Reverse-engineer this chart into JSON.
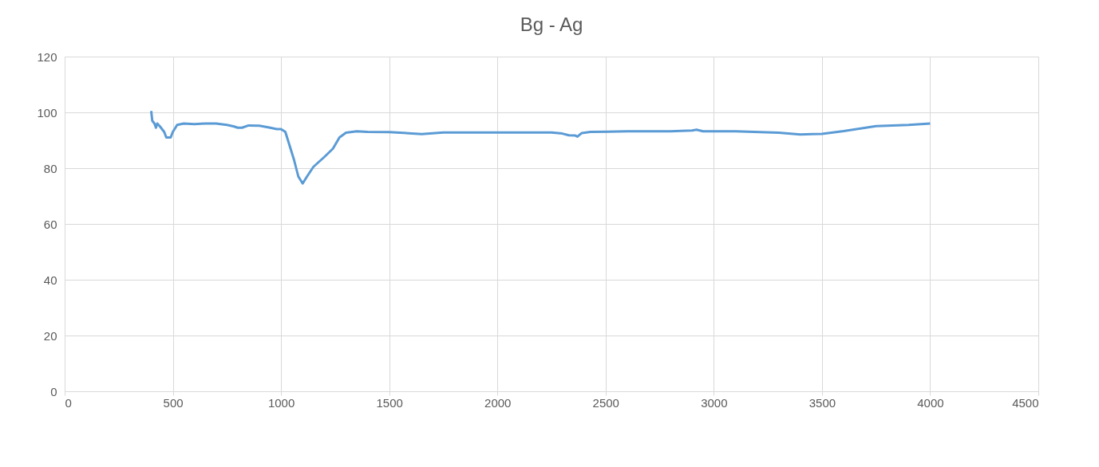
{
  "chart_data": {
    "type": "line",
    "title": "Bg - Ag",
    "x": [
      400,
      405,
      415,
      422,
      428,
      440,
      460,
      470,
      490,
      500,
      520,
      550,
      600,
      650,
      700,
      750,
      780,
      800,
      820,
      850,
      900,
      950,
      980,
      1000,
      1020,
      1040,
      1060,
      1080,
      1100,
      1120,
      1150,
      1200,
      1240,
      1270,
      1300,
      1350,
      1400,
      1500,
      1550,
      1650,
      1750,
      2000,
      2250,
      2300,
      2330,
      2360,
      2370,
      2390,
      2430,
      2600,
      2800,
      2900,
      2920,
      2950,
      3100,
      3300,
      3400,
      3500,
      3600,
      3750,
      3900,
      4000
    ],
    "series": [
      {
        "color": "#5b9bd5",
        "values": [
          100.5,
          97,
          96,
          94.5,
          96,
          95,
          93,
          91,
          91,
          93,
          95.5,
          96,
          95.8,
          96,
          96,
          95.5,
          95,
          94.5,
          94.5,
          95.3,
          95.2,
          94.5,
          94,
          94,
          93,
          88,
          83,
          77,
          74.5,
          77,
          80.5,
          84,
          87,
          91,
          92.7,
          93.2,
          93,
          92.9,
          92.7,
          92.2,
          92.8,
          92.8,
          92.8,
          92.4,
          91.8,
          91.7,
          91.3,
          92.6,
          93,
          93.2,
          93.2,
          93.5,
          93.8,
          93.2,
          93.2,
          92.7,
          92.1,
          92.3,
          93.3,
          95.1,
          95.5,
          96
        ]
      }
    ],
    "xlim": [
      0,
      4500
    ],
    "xticks": [
      0,
      500,
      1000,
      1500,
      2000,
      2500,
      3000,
      3500,
      4000,
      4500
    ],
    "ylim": [
      0,
      120
    ],
    "yticks": [
      0,
      20,
      40,
      60,
      80,
      100,
      120
    ],
    "grid": true,
    "marker": "none",
    "line_style": "solid"
  }
}
